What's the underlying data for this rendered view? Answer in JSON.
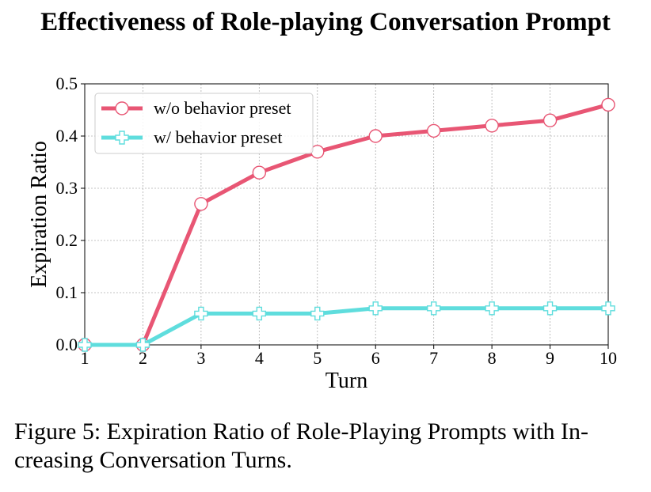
{
  "chart_data": {
    "type": "line",
    "title": "Effectiveness of Role-playing Conversation Prompt",
    "xlabel": "Turn",
    "ylabel": "Expiration Ratio",
    "x": [
      1,
      2,
      3,
      4,
      5,
      6,
      7,
      8,
      9,
      10
    ],
    "xlim": [
      1,
      10
    ],
    "ylim": [
      0,
      0.5
    ],
    "xticks": [
      "1",
      "2",
      "3",
      "4",
      "5",
      "6",
      "7",
      "8",
      "9",
      "10"
    ],
    "yticks": [
      "0.0",
      "0.1",
      "0.2",
      "0.3",
      "0.4",
      "0.5"
    ],
    "grid": true,
    "legend_position": "top-left",
    "series": [
      {
        "name": "w/o behavior preset",
        "values": [
          0.0,
          0.0,
          0.27,
          0.33,
          0.37,
          0.4,
          0.41,
          0.42,
          0.43,
          0.46
        ],
        "color": "#e85674",
        "marker": "circle"
      },
      {
        "name": "w/ behavior preset",
        "values": [
          0.0,
          0.0,
          0.06,
          0.06,
          0.06,
          0.07,
          0.07,
          0.07,
          0.07,
          0.07
        ],
        "color": "#5fdddd",
        "marker": "plus"
      }
    ]
  },
  "caption": "Figure 5: Expiration Ratio of Role-Playing Prompts with In-creasing Conversation Turns."
}
